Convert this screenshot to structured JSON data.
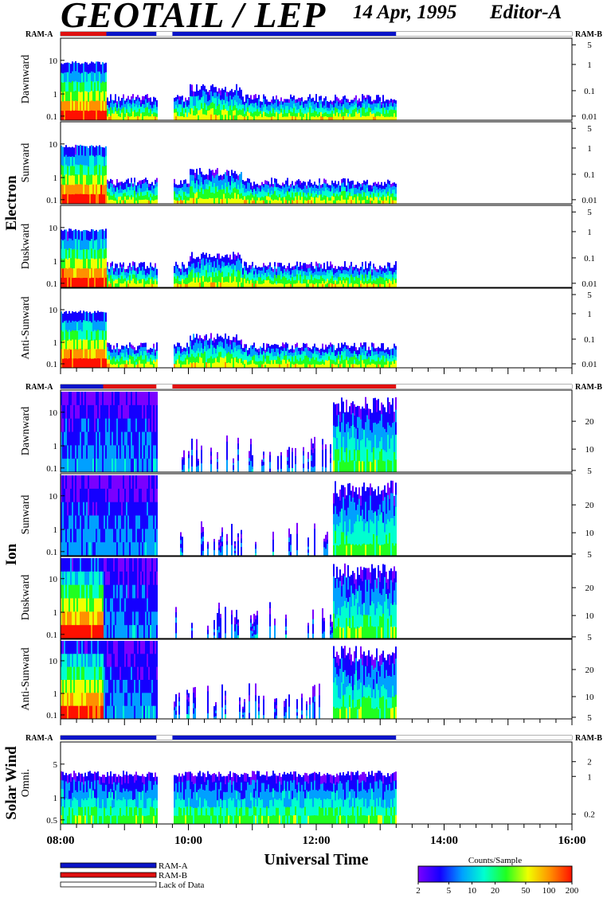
{
  "header": {
    "title": "GEOTAIL / LEP",
    "date": "14 Apr, 1995",
    "editor": "Editor-A"
  },
  "chart_data": {
    "type": "heatmap",
    "x_axis": {
      "label": "Universal Time",
      "range": [
        "08:00",
        "16:00"
      ],
      "tick_labels": [
        "08:00",
        "10:00",
        "12:00",
        "14:00",
        "16:00"
      ]
    },
    "data_coverage": [
      {
        "from": "08:00",
        "to": "09:30",
        "status": "data"
      },
      {
        "from": "09:30",
        "to": "09:45",
        "status": "gap"
      },
      {
        "from": "09:45",
        "to": "13:15",
        "status": "data"
      },
      {
        "from": "13:15",
        "to": "16:00",
        "status": "lack of data"
      }
    ],
    "groups": [
      {
        "name": "Electron",
        "ram_left": "RAM-A",
        "ram_right": "RAM-B",
        "ram_bar": [
          {
            "from": "08:00",
            "to": "08:43",
            "mode": "RAM-B"
          },
          {
            "from": "08:43",
            "to": "09:30",
            "mode": "RAM-A"
          },
          {
            "from": "09:30",
            "to": "09:45",
            "mode": "lack of data"
          },
          {
            "from": "09:45",
            "to": "13:15",
            "mode": "RAM-A"
          },
          {
            "from": "13:15",
            "to": "16:00",
            "mode": "lack of data"
          }
        ],
        "panels": [
          {
            "name": "Dawnward",
            "left_ticks": [
              "10",
              "1",
              "0.1"
            ],
            "right_ticks": [
              "5",
              "1",
              "0.1",
              "0.01"
            ]
          },
          {
            "name": "Sunward",
            "left_ticks": [
              "10",
              "1",
              "0.1"
            ],
            "right_ticks": [
              "5",
              "1",
              "0.1",
              "0.01"
            ]
          },
          {
            "name": "Duskward",
            "left_ticks": [
              "10",
              "1",
              "0.1"
            ],
            "right_ticks": [
              "5",
              "1",
              "0.1",
              "0.01"
            ]
          },
          {
            "name": "Anti-Sunward",
            "left_ticks": [
              "10",
              "1",
              "0.1"
            ],
            "right_ticks": [
              "5",
              "1",
              "0.1",
              "0.01"
            ]
          }
        ]
      },
      {
        "name": "Ion",
        "ram_left": "RAM-A",
        "ram_right": "RAM-B",
        "ram_bar": [
          {
            "from": "08:00",
            "to": "08:40",
            "mode": "RAM-A"
          },
          {
            "from": "08:40",
            "to": "09:30",
            "mode": "RAM-B"
          },
          {
            "from": "09:30",
            "to": "09:45",
            "mode": "lack of data"
          },
          {
            "from": "09:45",
            "to": "13:15",
            "mode": "RAM-B"
          },
          {
            "from": "13:15",
            "to": "16:00",
            "mode": "lack of data"
          }
        ],
        "panels": [
          {
            "name": "Dawnward",
            "left_ticks": [
              "10",
              "1",
              "0.1"
            ],
            "right_ticks": [
              "20",
              "10",
              "5"
            ]
          },
          {
            "name": "Sunward",
            "left_ticks": [
              "10",
              "1",
              "0.1"
            ],
            "right_ticks": [
              "20",
              "10",
              "5"
            ]
          },
          {
            "name": "Duskward",
            "left_ticks": [
              "10",
              "1",
              "0.1"
            ],
            "right_ticks": [
              "20",
              "10",
              "5"
            ]
          },
          {
            "name": "Anti-Sunward",
            "left_ticks": [
              "10",
              "1",
              "0.1"
            ],
            "right_ticks": [
              "20",
              "10",
              "5"
            ]
          }
        ]
      },
      {
        "name": "Solar Wind",
        "ram_left": "RAM-A",
        "ram_right": "RAM-B",
        "ram_bar": [
          {
            "from": "08:00",
            "to": "09:30",
            "mode": "RAM-A"
          },
          {
            "from": "09:30",
            "to": "09:45",
            "mode": "lack of data"
          },
          {
            "from": "09:45",
            "to": "13:15",
            "mode": "RAM-A"
          },
          {
            "from": "13:15",
            "to": "16:00",
            "mode": "lack of data"
          }
        ],
        "panels": [
          {
            "name": "Omni.",
            "left_ticks": [
              "5",
              "1",
              "0.5"
            ],
            "right_ticks": [
              "2",
              "1",
              "0.2"
            ]
          }
        ]
      }
    ],
    "legend": {
      "items": [
        {
          "label": "RAM-A",
          "color": "#0a14c8"
        },
        {
          "label": "RAM-B",
          "color": "#e01010"
        },
        {
          "label": "Lack of Data",
          "color": "#ffffff"
        }
      ]
    },
    "colorbar": {
      "title": "Counts/Sample",
      "tick_labels": [
        "2",
        "5",
        "10",
        "20",
        "50",
        "100",
        "200"
      ],
      "colors": [
        "#7a00ff",
        "#1400ff",
        "#00a0ff",
        "#00ffd0",
        "#20ff20",
        "#f0ff00",
        "#ff9000",
        "#ff1000"
      ]
    }
  }
}
